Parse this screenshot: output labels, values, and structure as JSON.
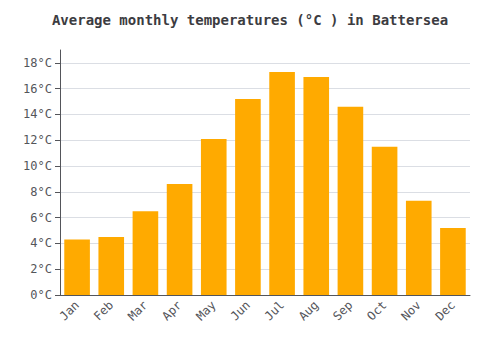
{
  "chart_data": {
    "type": "bar",
    "title": "Average monthly temperatures (°C ) in Battersea",
    "categories": [
      "Jan",
      "Feb",
      "Mar",
      "Apr",
      "May",
      "Jun",
      "Jul",
      "Aug",
      "Sep",
      "Oct",
      "Nov",
      "Dec"
    ],
    "values": [
      4.3,
      4.5,
      6.5,
      8.6,
      12.1,
      15.2,
      17.3,
      16.9,
      14.6,
      11.5,
      7.3,
      5.2
    ],
    "color": "#FFAA00",
    "ylim": [
      0,
      19
    ],
    "yticks": [
      {
        "value": 0,
        "label": "0°C"
      },
      {
        "value": 2,
        "label": "2°C"
      },
      {
        "value": 4,
        "label": "4°C"
      },
      {
        "value": 6,
        "label": "6°C"
      },
      {
        "value": 8,
        "label": "8°C"
      },
      {
        "value": 10,
        "label": "10°C"
      },
      {
        "value": 12,
        "label": "12°C"
      },
      {
        "value": 14,
        "label": "14°C"
      },
      {
        "value": 16,
        "label": "16°C"
      },
      {
        "value": 18,
        "label": "18°C"
      }
    ],
    "grid": true
  }
}
